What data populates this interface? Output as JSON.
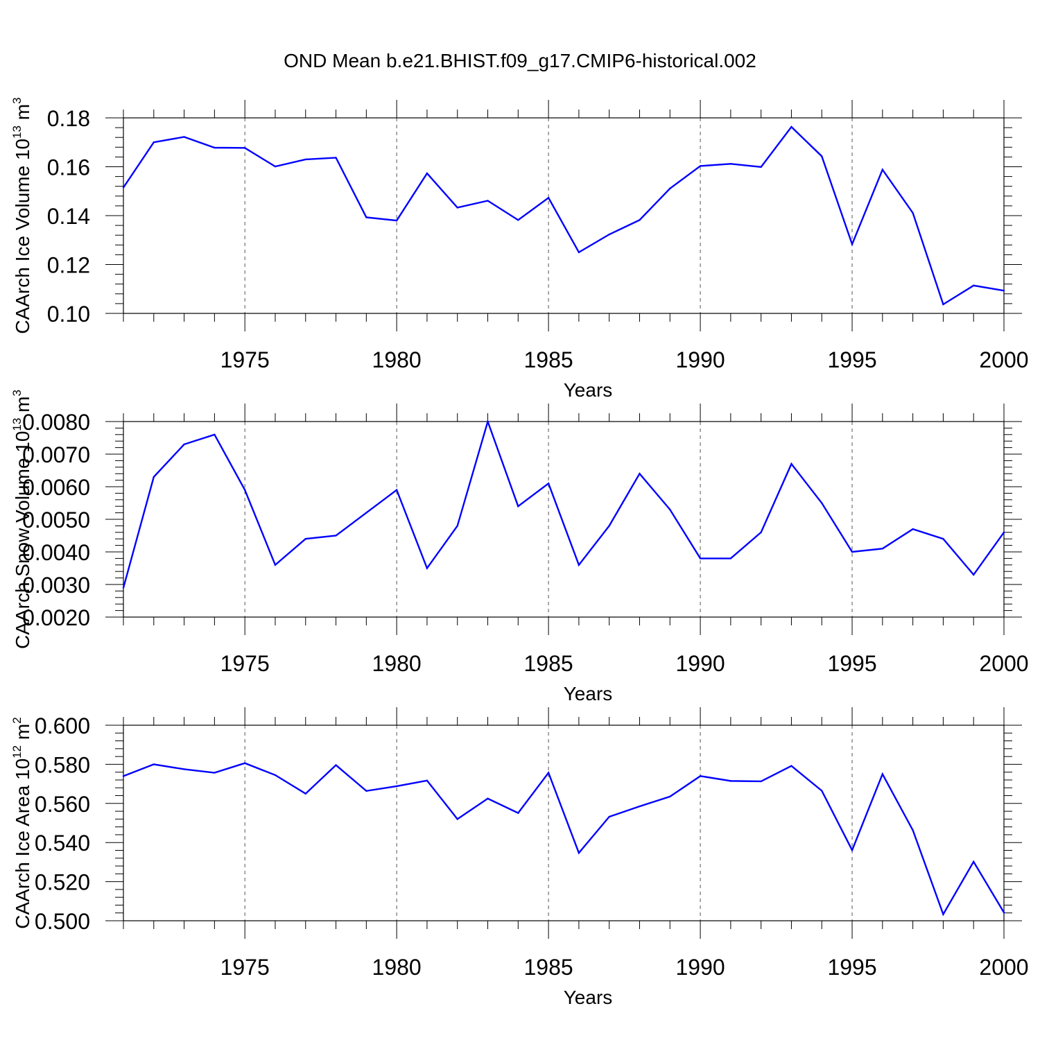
{
  "title": "OND Mean b.e21.BHIST.f09_g17.CMIP6-historical.002",
  "colors": {
    "line": "#0000ff",
    "axis": "#000000",
    "grid": "#000000"
  },
  "chart_data": [
    {
      "type": "line",
      "x": [
        1971,
        1972,
        1973,
        1974,
        1975,
        1976,
        1977,
        1978,
        1979,
        1980,
        1981,
        1982,
        1983,
        1984,
        1985,
        1986,
        1987,
        1988,
        1989,
        1990,
        1991,
        1992,
        1993,
        1994,
        1995,
        1996,
        1997,
        1998,
        1999,
        2000
      ],
      "series": [
        {
          "values": [
            0.1515,
            0.17,
            0.1722,
            0.1678,
            0.1677,
            0.1601,
            0.163,
            0.1637,
            0.1393,
            0.138,
            0.1573,
            0.1433,
            0.1461,
            0.1382,
            0.1473,
            0.125,
            0.1323,
            0.1382,
            0.1511,
            0.1603,
            0.1612,
            0.1599,
            0.1763,
            0.1643,
            0.1283,
            0.1588,
            0.1411,
            0.1037,
            0.1114,
            0.1093
          ]
        }
      ],
      "xlim": [
        1971,
        2000
      ],
      "ylim": [
        0.1,
        0.18
      ],
      "xticks": [
        "1975",
        "1980",
        "1985",
        "1990",
        "1995",
        "2000"
      ],
      "xtick_values": [
        1975,
        1980,
        1985,
        1990,
        1995,
        2000
      ],
      "yticks": [
        "0.10",
        "0.12",
        "0.14",
        "0.16",
        "0.18"
      ],
      "ytick_values": [
        0.1,
        0.12,
        0.14,
        0.16,
        0.18
      ],
      "xlabel": "Years",
      "ylabel": {
        "main": "CAArch Ice Volume 10",
        "exp": "13",
        "unit": " m",
        "unit_exp": "3"
      },
      "grid": "vertical dashed at major x ticks"
    },
    {
      "type": "line",
      "x": [
        1971,
        1972,
        1973,
        1974,
        1975,
        1976,
        1977,
        1978,
        1979,
        1980,
        1981,
        1982,
        1983,
        1984,
        1985,
        1986,
        1987,
        1988,
        1989,
        1990,
        1991,
        1992,
        1993,
        1994,
        1995,
        1996,
        1997,
        1998,
        1999,
        2000
      ],
      "series": [
        {
          "values": [
            0.0029,
            0.0063,
            0.0073,
            0.0076,
            0.0059,
            0.0036,
            0.0044,
            0.0045,
            0.0052,
            0.0059,
            0.0035,
            0.0048,
            0.008,
            0.0054,
            0.0061,
            0.0036,
            0.0048,
            0.0064,
            0.0053,
            0.0038,
            0.0038,
            0.0046,
            0.0067,
            0.0055,
            0.004,
            0.0041,
            0.0047,
            0.0044,
            0.0033,
            0.0046
          ]
        }
      ],
      "xlim": [
        1971,
        2000
      ],
      "ylim": [
        0.002,
        0.008
      ],
      "xticks": [
        "1975",
        "1980",
        "1985",
        "1990",
        "1995",
        "2000"
      ],
      "xtick_values": [
        1975,
        1980,
        1985,
        1990,
        1995,
        2000
      ],
      "yticks": [
        "0.0020",
        "0.0030",
        "0.0040",
        "0.0050",
        "0.0060",
        "0.0070",
        "0.0080"
      ],
      "ytick_values": [
        0.002,
        0.003,
        0.004,
        0.005,
        0.006,
        0.007,
        0.008
      ],
      "xlabel": "Years",
      "ylabel": {
        "main": "CAArch Snow Volume 10",
        "exp": "13",
        "unit": " m",
        "unit_exp": "3"
      },
      "grid": "vertical dashed at major x ticks"
    },
    {
      "type": "line",
      "x": [
        1971,
        1972,
        1973,
        1974,
        1975,
        1976,
        1977,
        1978,
        1979,
        1980,
        1981,
        1982,
        1983,
        1984,
        1985,
        1986,
        1987,
        1988,
        1989,
        1990,
        1991,
        1992,
        1993,
        1994,
        1995,
        1996,
        1997,
        1998,
        1999,
        2000
      ],
      "series": [
        {
          "values": [
            0.574,
            0.58,
            0.5775,
            0.5757,
            0.5806,
            0.5745,
            0.565,
            0.5796,
            0.5664,
            0.5688,
            0.5717,
            0.552,
            0.5625,
            0.5551,
            0.5757,
            0.5347,
            0.5532,
            0.5585,
            0.5635,
            0.574,
            0.5715,
            0.5713,
            0.5792,
            0.5665,
            0.5361,
            0.575,
            0.5463,
            0.5033,
            0.5302,
            0.5042
          ]
        }
      ],
      "xlim": [
        1971,
        2000
      ],
      "ylim": [
        0.5,
        0.6
      ],
      "xticks": [
        "1975",
        "1980",
        "1985",
        "1990",
        "1995",
        "2000"
      ],
      "xtick_values": [
        1975,
        1980,
        1985,
        1990,
        1995,
        2000
      ],
      "yticks": [
        "0.500",
        "0.520",
        "0.540",
        "0.560",
        "0.580",
        "0.600"
      ],
      "ytick_values": [
        0.5,
        0.52,
        0.54,
        0.56,
        0.58,
        0.6
      ],
      "xlabel": "Years",
      "ylabel": {
        "main": "CAArch Ice Area 10",
        "exp": "12",
        "unit": " m",
        "unit_exp": "2"
      },
      "grid": "vertical dashed at major x ticks"
    }
  ]
}
